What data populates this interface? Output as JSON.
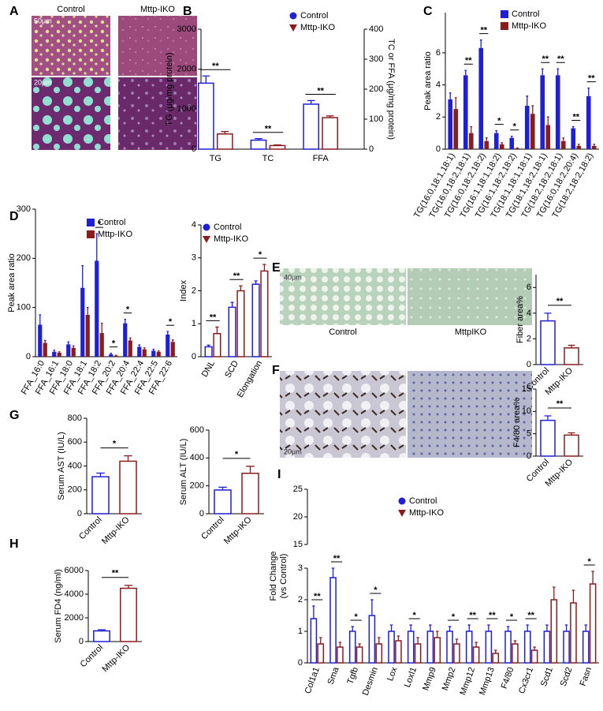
{
  "figure": {
    "panel_letters": [
      "A",
      "B",
      "C",
      "D",
      "E",
      "F",
      "G",
      "H",
      "I"
    ],
    "image_labels": {
      "a_control": "Control",
      "a_iko": "Mttp-IKO",
      "a_scale_top": "50μm",
      "a_scale_bottom": "20μm",
      "e_control": "Control",
      "e_iko": "MttpIKO",
      "e_scale": "40μm",
      "f_scale": "20μm"
    }
  },
  "chart_data": [
    {
      "type": "bar",
      "ylabel": "TG (μg/mg protein)",
      "y2label": "TC or FFA (μg/mg protein)",
      "categories": [
        "TG",
        "TC",
        "FFA"
      ],
      "category_axis": [
        "y",
        "y2",
        "y2"
      ],
      "series": [
        {
          "name": "Control",
          "color": "#1f1fd6",
          "marker": "circle",
          "values": [
            1650,
            30,
            150
          ],
          "errors": [
            180,
            5,
            12
          ]
        },
        {
          "name": "Mttp-IKO",
          "color": "#8b1c1c",
          "marker": "triangle",
          "values": [
            380,
            12,
            105
          ],
          "errors": [
            60,
            2,
            6
          ]
        }
      ],
      "ylim": [
        0,
        3000
      ],
      "yticks": [
        0,
        1000,
        2000,
        3000
      ],
      "y2lim": [
        0,
        400
      ],
      "y2ticks": [
        0,
        100,
        200,
        300,
        400
      ],
      "significance": [
        "**",
        "**",
        "**"
      ],
      "bar_style": "outline",
      "legend": "upper right"
    },
    {
      "type": "bar",
      "ylabel": "Peak area ratio",
      "categories": [
        "TG(16:0,18:1,18:1)",
        "TG(16:0,18:2,18:1)",
        "TG(16:0,18:2,18:2)",
        "TG(16:1,18:1,18:2)",
        "TG(16:1,18:2,18:2)",
        "TG(18:1,18:1,18:1)",
        "TG(18:1,18:2,18:1)",
        "TG(18:2,18:2,18:1)",
        "TG(16:0,18:2,20:4)",
        "TG(18:2,18:2,18:2)"
      ],
      "series": [
        {
          "name": "Control",
          "color": "#1f1fd6",
          "marker": "square",
          "values": [
            3.1,
            4.6,
            6.3,
            1.0,
            0.7,
            2.7,
            4.6,
            4.6,
            1.3,
            3.3
          ],
          "errors": [
            0.4,
            0.3,
            0.5,
            0.15,
            0.1,
            0.6,
            0.4,
            0.4,
            0.1,
            0.5
          ]
        },
        {
          "name": "Mttp-IKO",
          "color": "#8b1c1c",
          "marker": "square",
          "values": [
            2.5,
            1.0,
            0.5,
            0.3,
            0.05,
            2.2,
            1.5,
            0.5,
            0.2,
            0.2
          ],
          "errors": [
            0.7,
            0.4,
            0.2,
            0.1,
            0.02,
            0.5,
            0.5,
            0.2,
            0.1,
            0.1
          ]
        }
      ],
      "ylim": [
        0,
        8.5
      ],
      "yticks": [
        0,
        2,
        4,
        6
      ],
      "significance": [
        null,
        "**",
        "**",
        "*",
        "*",
        null,
        "**",
        "**",
        "**",
        "**"
      ],
      "bar_style": "filled",
      "legend": "upper right"
    },
    {
      "type": "bar",
      "ylabel": "Peak area ratio",
      "categories": [
        "FFA_16:0",
        "FFA_16:1",
        "FFA_18:0",
        "FFA_18:1",
        "FFA_18:2",
        "FFA_20:2",
        "FFA_20:4",
        "FFA_22:4",
        "FFA_22:5",
        "FFA_22:6"
      ],
      "series": [
        {
          "name": "Control",
          "color": "#1f1fd6",
          "marker": "square",
          "values": [
            65,
            10,
            25,
            140,
            195,
            5,
            68,
            20,
            12,
            45
          ],
          "errors": [
            20,
            3,
            5,
            45,
            55,
            2,
            8,
            4,
            3,
            6
          ]
        },
        {
          "name": "Mttp-IKO",
          "color": "#8b1c1c",
          "marker": "square",
          "values": [
            28,
            8,
            18,
            85,
            48,
            2,
            33,
            15,
            10,
            30
          ],
          "errors": [
            5,
            2,
            4,
            15,
            20,
            1,
            5,
            3,
            2,
            4
          ]
        }
      ],
      "ylim": [
        0,
        300
      ],
      "yticks": [
        0,
        100,
        200,
        300
      ],
      "significance": [
        null,
        null,
        null,
        null,
        "*",
        "*",
        "*",
        null,
        null,
        "*"
      ],
      "bar_style": "filled",
      "legend": "upper right"
    },
    {
      "type": "bar",
      "ylabel": "Index",
      "categories": [
        "DNL",
        "SCD",
        "Elongation"
      ],
      "series": [
        {
          "name": "Control",
          "color": "#1f1fd6",
          "marker": "circle",
          "values": [
            0.3,
            1.5,
            2.2
          ],
          "errors": [
            0.05,
            0.15,
            0.1
          ]
        },
        {
          "name": "Mttp-IKO",
          "color": "#8b1c1c",
          "marker": "triangle",
          "values": [
            0.7,
            2.0,
            2.6
          ],
          "errors": [
            0.2,
            0.15,
            0.2
          ]
        }
      ],
      "ylim": [
        0,
        4
      ],
      "yticks": [
        0,
        1,
        2,
        3,
        4
      ],
      "significance": [
        "**",
        "**",
        "*"
      ],
      "bar_style": "outline",
      "legend": "upper left"
    },
    {
      "type": "bar",
      "ylabel": "Fiber area%",
      "categories": [
        "Control",
        "Mttp-IKO"
      ],
      "values": [
        3.4,
        1.3
      ],
      "errors": [
        0.6,
        0.2
      ],
      "colors": [
        "#1f1fd6",
        "#8b1c1c"
      ],
      "ylim": [
        0,
        7
      ],
      "yticks": [
        0,
        2,
        4,
        6
      ],
      "significance": "**",
      "bar_style": "outline"
    },
    {
      "type": "bar",
      "ylabel": "F4/80 area%",
      "categories": [
        "Control",
        "Mttp-IKO"
      ],
      "values": [
        8,
        4.7
      ],
      "errors": [
        1,
        0.5
      ],
      "colors": [
        "#1f1fd6",
        "#8b1c1c"
      ],
      "ylim": [
        0,
        15
      ],
      "yticks": [
        0,
        5,
        10,
        15
      ],
      "significance": "**",
      "bar_style": "outline"
    },
    {
      "type": "bar",
      "ylabel": "Serum AST (IU/L)",
      "categories": [
        "Control",
        "Mttp-IKO"
      ],
      "values": [
        310,
        440
      ],
      "errors": [
        30,
        45
      ],
      "colors": [
        "#1f1fd6",
        "#8b1c1c"
      ],
      "ylim": [
        0,
        800
      ],
      "yticks": [
        0,
        200,
        400,
        600,
        800
      ],
      "significance": "*",
      "bar_style": "outline"
    },
    {
      "type": "bar",
      "ylabel": "Serum ALT (IU/L)",
      "categories": [
        "Control",
        "Mttp-IKO"
      ],
      "values": [
        170,
        290
      ],
      "errors": [
        20,
        50
      ],
      "colors": [
        "#1f1fd6",
        "#8b1c1c"
      ],
      "ylim": [
        0,
        600
      ],
      "yticks": [
        0,
        200,
        400,
        600
      ],
      "significance": "*",
      "bar_style": "outline"
    },
    {
      "type": "bar",
      "ylabel": "Serum FD4 (ng/ml)",
      "categories": [
        "Control",
        "Mttp-IKO"
      ],
      "values": [
        900,
        4500
      ],
      "errors": [
        100,
        250
      ],
      "colors": [
        "#1f1fd6",
        "#8b1c1c"
      ],
      "ylim": [
        0,
        6000
      ],
      "yticks": [
        0,
        2000,
        4000,
        6000
      ],
      "significance": "**",
      "bar_style": "outline"
    },
    {
      "type": "bar",
      "ylabel": [
        "Fold Change",
        "(vs Control)"
      ],
      "categories": [
        "Col1a1",
        "Sma",
        "Tgfb",
        "Desmin",
        "Lox",
        "Loxl1",
        "Mmp9",
        "Mmp2",
        "Mmp12",
        "Mmp13",
        "F4/80",
        "Cx3cr1",
        "Scd1",
        "Scd2",
        "Fasn"
      ],
      "series": [
        {
          "name": "Control",
          "color": "#1f1fd6",
          "marker": "circle",
          "values": [
            1.4,
            2.7,
            1.0,
            1.5,
            1.0,
            1.0,
            1.0,
            1.0,
            1.0,
            1.0,
            1.0,
            1.0,
            1.0,
            1.0,
            1.0
          ],
          "errors": [
            0.4,
            1.0,
            0.15,
            0.5,
            0.2,
            0.2,
            0.2,
            0.15,
            0.2,
            0.2,
            0.15,
            0.2,
            0.2,
            0.2,
            0.2
          ]
        },
        {
          "name": "Mttp-IKO",
          "color": "#8b1c1c",
          "marker": "triangle",
          "values": [
            0.6,
            0.5,
            0.5,
            0.6,
            0.7,
            0.6,
            0.8,
            0.6,
            0.5,
            0.3,
            0.6,
            0.4,
            2.0,
            1.9,
            2.5
          ],
          "errors": [
            0.2,
            0.15,
            0.1,
            0.2,
            0.15,
            0.2,
            0.2,
            0.15,
            0.15,
            0.1,
            0.1,
            0.1,
            0.4,
            0.4,
            0.4
          ]
        }
      ],
      "ylim": [
        0,
        25
      ],
      "axis_break": [
        3,
        15
      ],
      "yticks": [
        0,
        1,
        2,
        3,
        15,
        20,
        25
      ],
      "significance": [
        "**",
        "**",
        "*",
        "*",
        null,
        "*",
        null,
        "*",
        "**",
        "**",
        "*",
        "**",
        null,
        null,
        "*"
      ],
      "bar_style": "outline",
      "legend": "upper left"
    }
  ]
}
